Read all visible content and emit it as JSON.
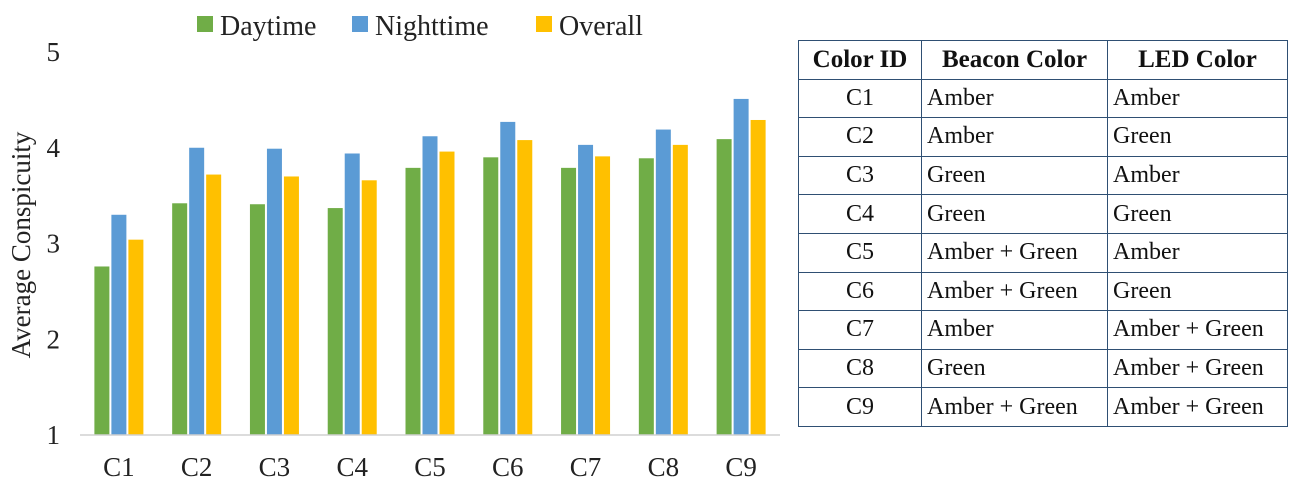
{
  "chart_data": {
    "type": "bar",
    "categories": [
      "C1",
      "C2",
      "C3",
      "C4",
      "C5",
      "C6",
      "C7",
      "C8",
      "C9"
    ],
    "series": [
      {
        "name": "Daytime",
        "color": "#70ad47",
        "values": [
          2.76,
          3.42,
          3.41,
          3.37,
          3.79,
          3.9,
          3.79,
          3.89,
          4.09
        ]
      },
      {
        "name": "Nighttime",
        "color": "#5b9bd5",
        "values": [
          3.3,
          4.0,
          3.99,
          3.94,
          4.12,
          4.27,
          4.03,
          4.19,
          4.51
        ]
      },
      {
        "name": "Overall",
        "color": "#ffc000",
        "values": [
          3.04,
          3.72,
          3.7,
          3.66,
          3.96,
          4.08,
          3.91,
          4.03,
          4.29
        ]
      }
    ],
    "title": "",
    "xlabel": "",
    "ylabel": "Average Conspicuity",
    "ylim": [
      1,
      5
    ],
    "yticks": [
      1,
      2,
      3,
      4,
      5
    ],
    "grid": false,
    "legend": "top"
  },
  "table": {
    "headers": {
      "id": "Color ID",
      "beacon": "Beacon Color",
      "led": "LED Color"
    },
    "rows": [
      {
        "id": "C1",
        "beacon": "Amber",
        "led": "Amber"
      },
      {
        "id": "C2",
        "beacon": "Amber",
        "led": "Green"
      },
      {
        "id": "C3",
        "beacon": "Green",
        "led": "Amber"
      },
      {
        "id": "C4",
        "beacon": "Green",
        "led": "Green"
      },
      {
        "id": "C5",
        "beacon": "Amber + Green",
        "led": "Amber"
      },
      {
        "id": "C6",
        "beacon": "Amber + Green",
        "led": "Green"
      },
      {
        "id": "C7",
        "beacon": "Amber",
        "led": "Amber + Green"
      },
      {
        "id": "C8",
        "beacon": "Green",
        "led": "Amber + Green"
      },
      {
        "id": "C9",
        "beacon": "Amber + Green",
        "led": "Amber + Green"
      }
    ]
  }
}
